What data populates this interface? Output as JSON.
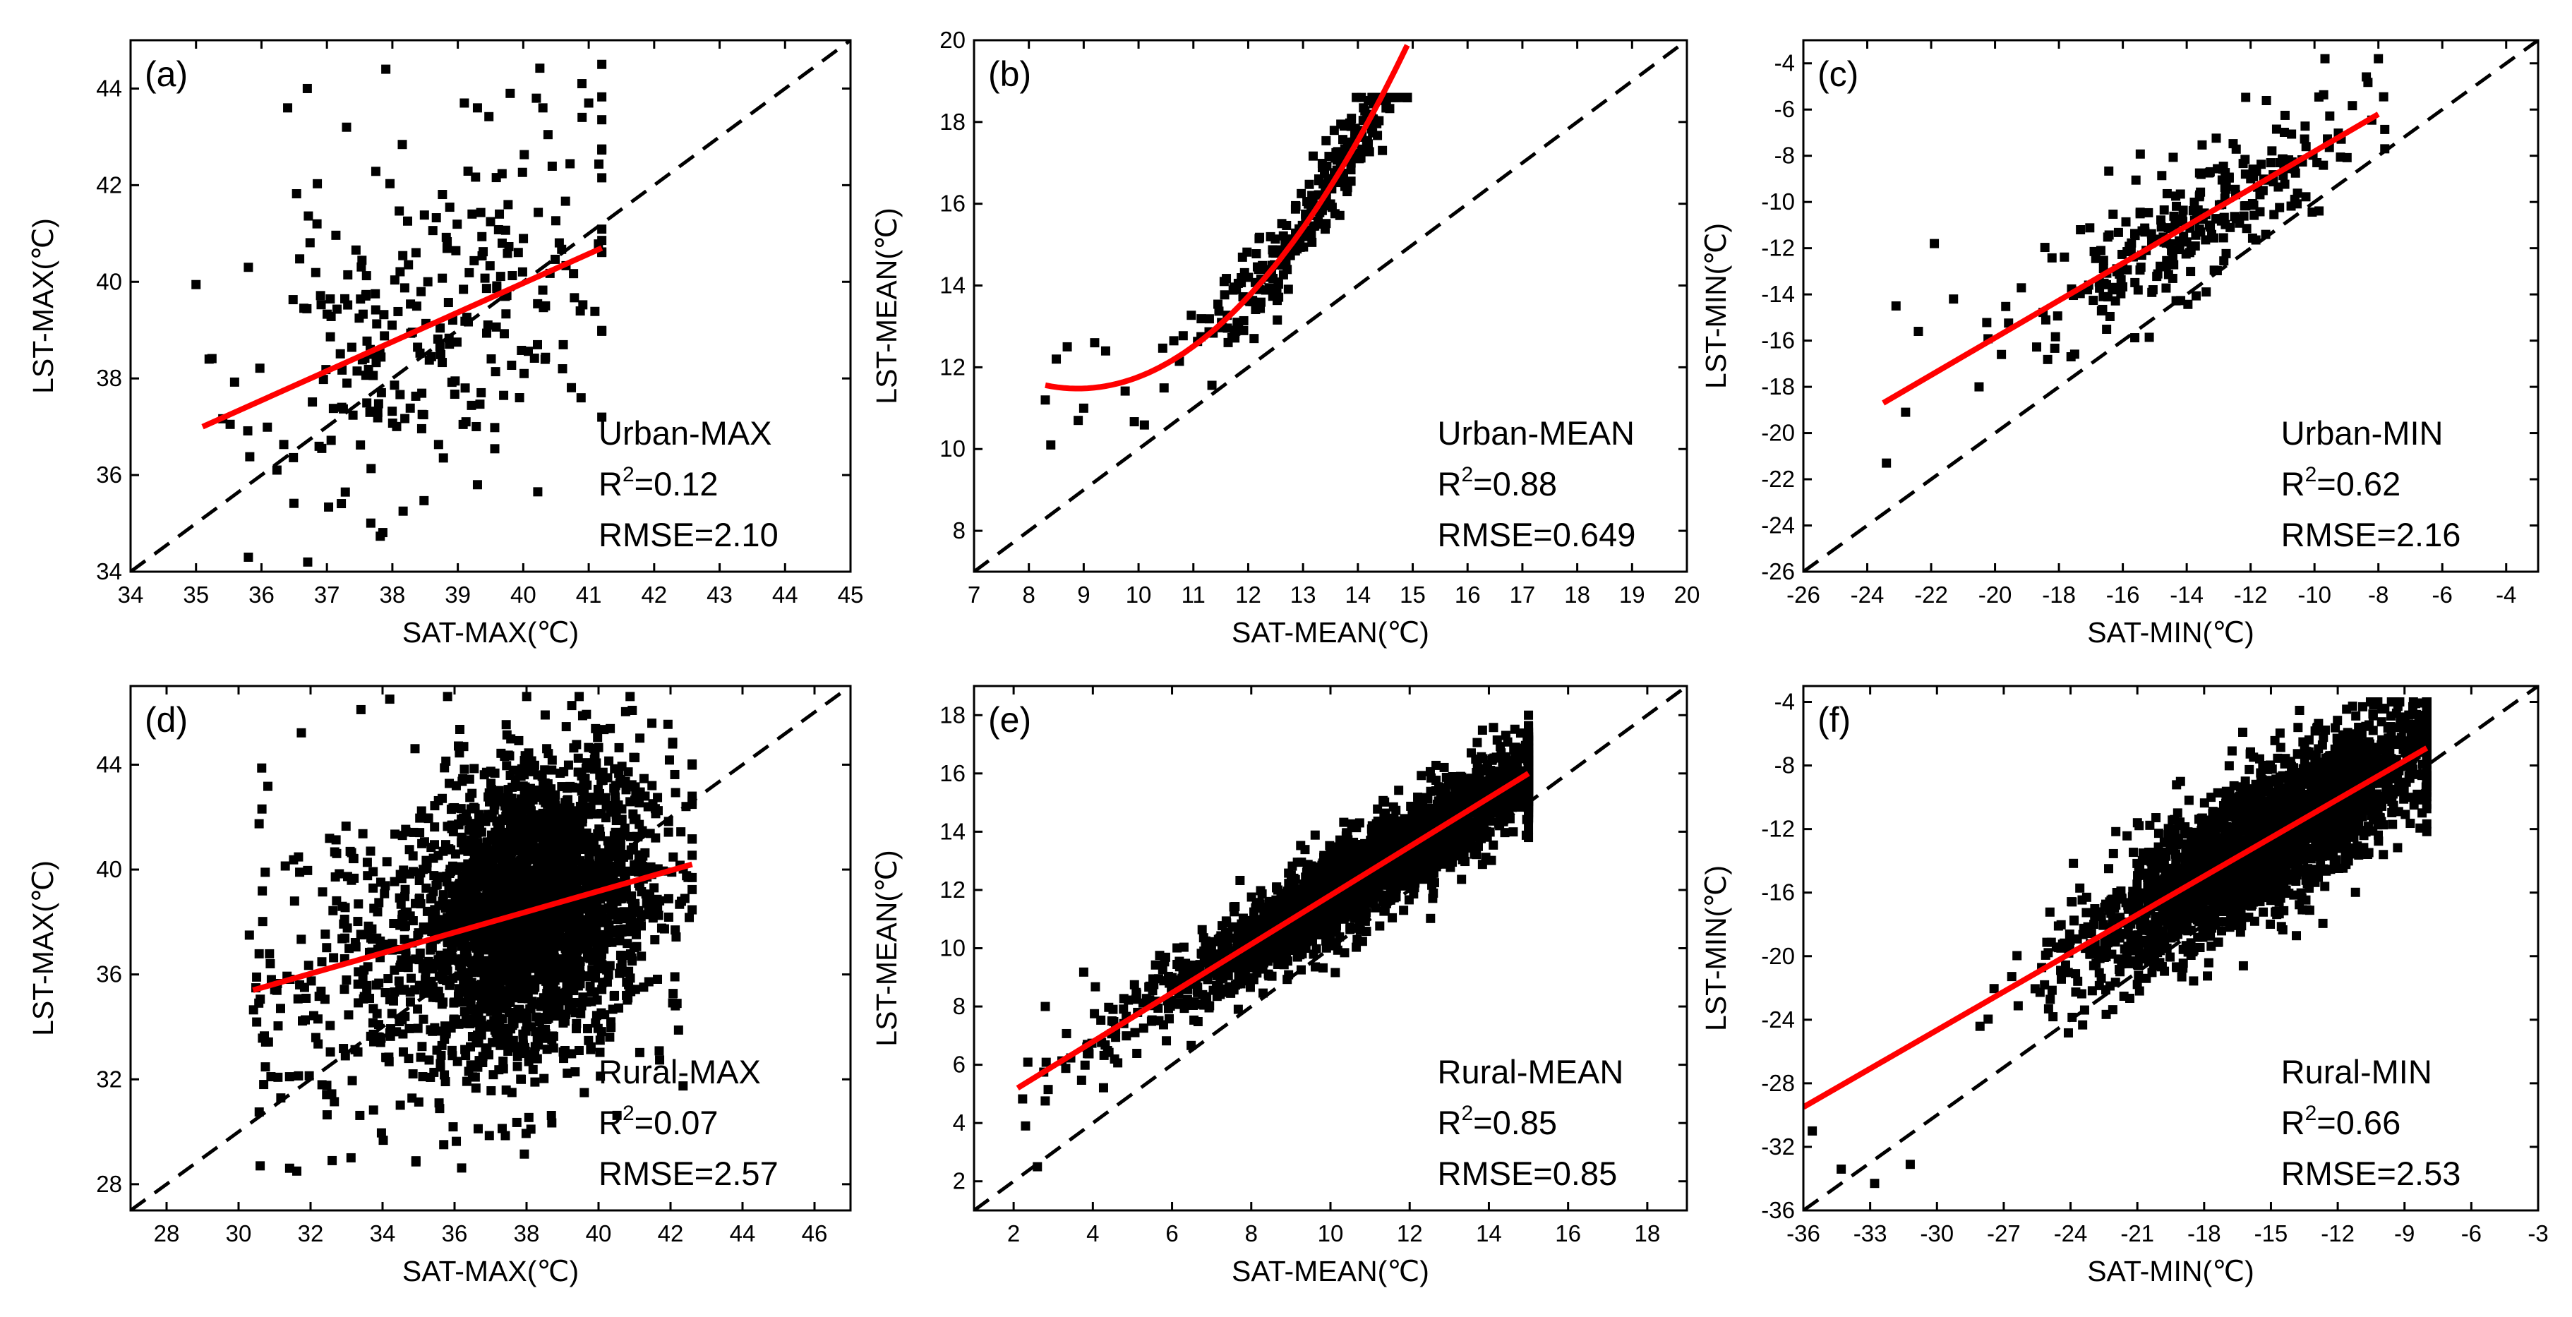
{
  "figure": {
    "description_labels": [
      "(a)",
      "(b)",
      "(c)",
      "(d)",
      "(e)",
      "(f)"
    ]
  },
  "colors": {
    "points": "#000000",
    "fit_line": "#ff0000",
    "identity_line": "#000000",
    "background": "#ffffff"
  },
  "chart_data": [
    {
      "type": "scatter",
      "panel_label": "(a)",
      "title": "Urban-MAX",
      "xlabel": "SAT-MAX(℃)",
      "ylabel": "LST-MAX(℃)",
      "xlim": [
        34,
        45
      ],
      "ylim": [
        34,
        45
      ],
      "xticks": [
        34,
        35,
        36,
        37,
        38,
        39,
        40,
        41,
        42,
        43,
        44,
        45
      ],
      "yticks": [
        34,
        36,
        38,
        40,
        42,
        44
      ],
      "fit": {
        "kind": "linear",
        "x": [
          35.1,
          41.2
        ],
        "y": [
          37.0,
          40.7
        ]
      },
      "identity_line": true,
      "stats": {
        "r2": "=0.12",
        "rmse": "RMSE=2.10"
      },
      "point_cloud": {
        "n": 260,
        "x_center": 38.6,
        "x_spread": 1.35,
        "y_spread": 1.75,
        "x_min": 35.0,
        "x_max": 41.2,
        "y_min": 34.2,
        "y_max": 44.5,
        "seed": 11
      },
      "points": [
        [
          35.8,
          40.3
        ],
        [
          36.4,
          43.6
        ],
        [
          36.7,
          44.0
        ],
        [
          37.3,
          43.2
        ],
        [
          37.9,
          44.4
        ],
        [
          39.1,
          43.7
        ],
        [
          39.3,
          43.6
        ],
        [
          39.8,
          43.9
        ],
        [
          40.2,
          43.8
        ],
        [
          40.3,
          43.6
        ],
        [
          41.0,
          43.7
        ],
        [
          35.2,
          38.4
        ],
        [
          35.8,
          34.3
        ],
        [
          39.3,
          35.8
        ],
        [
          40.6,
          38.2
        ]
      ]
    },
    {
      "type": "scatter",
      "panel_label": "(b)",
      "title": "Urban-MEAN",
      "xlabel": "SAT-MEAN(℃)",
      "ylabel": "LST-MEAN(℃)",
      "xlim": [
        7,
        20
      ],
      "ylim": [
        7,
        20
      ],
      "xticks": [
        7,
        8,
        9,
        10,
        11,
        12,
        13,
        14,
        15,
        16,
        17,
        18,
        19,
        20
      ],
      "yticks": [
        8,
        10,
        12,
        14,
        16,
        18,
        20
      ],
      "fit": {
        "kind": "poly2",
        "coef": [
          0.2327,
          -4.1385,
          29.8795
        ],
        "x_range": [
          8.3,
          14.9
        ]
      },
      "identity_line": true,
      "stats": {
        "r2": "=0.88",
        "rmse": "RMSE=0.649"
      },
      "point_cloud": {
        "n": 300,
        "x_center": 13.2,
        "x_spread": 1.2,
        "y_spread": 0.55,
        "x_min": 8.3,
        "x_max": 14.9,
        "y_min": 10.0,
        "y_max": 18.6,
        "seed": 23,
        "follow_fit": true
      },
      "points": [
        [
          8.4,
          10.1
        ],
        [
          8.5,
          12.2
        ],
        [
          8.7,
          12.5
        ],
        [
          9.0,
          11.0
        ],
        [
          9.2,
          12.6
        ],
        [
          9.4,
          12.4
        ],
        [
          8.9,
          10.7
        ],
        [
          8.3,
          11.2
        ]
      ]
    },
    {
      "type": "scatter",
      "panel_label": "(c)",
      "title": "Urban-MIN",
      "xlabel": "SAT-MIN(℃)",
      "ylabel": "LST-MIN(℃)",
      "xlim": [
        -26,
        -3
      ],
      "ylim": [
        -26,
        -3
      ],
      "xticks": [
        -26,
        -24,
        -22,
        -20,
        -18,
        -16,
        -14,
        -12,
        -10,
        -8,
        -6,
        -4
      ],
      "yticks": [
        -26,
        -24,
        -22,
        -20,
        -18,
        -16,
        -14,
        -12,
        -10,
        -8,
        -6,
        -4
      ],
      "fit": {
        "kind": "linear",
        "x": [
          -23.5,
          -8.0
        ],
        "y": [
          -18.7,
          -6.2
        ]
      },
      "identity_line": true,
      "stats": {
        "r2": "=0.62",
        "rmse": "RMSE=2.16"
      },
      "point_cloud": {
        "n": 280,
        "x_center": -13.5,
        "x_spread": 2.5,
        "y_spread": 1.4,
        "x_min": -23.6,
        "x_max": -7.8,
        "y_min": -21.6,
        "y_max": -3.8,
        "seed": 37,
        "follow_fit": true
      },
      "points": [
        [
          -23.4,
          -21.3
        ],
        [
          -23.1,
          -14.5
        ],
        [
          -22.4,
          -15.6
        ],
        [
          -21.9,
          -11.8
        ],
        [
          -21.3,
          -14.2
        ],
        [
          -20.5,
          -18.0
        ],
        [
          -19.8,
          -16.6
        ],
        [
          -8.0,
          -3.8
        ],
        [
          -22.8,
          -19.1
        ]
      ]
    },
    {
      "type": "scatter",
      "panel_label": "(d)",
      "title": "Rural-MAX",
      "xlabel": "SAT-MAX(℃)",
      "ylabel": "LST-MAX(℃)",
      "xlim": [
        27,
        47
      ],
      "ylim": [
        27,
        47
      ],
      "xticks": [
        28,
        30,
        32,
        34,
        36,
        38,
        40,
        42,
        44,
        46
      ],
      "yticks": [
        28,
        32,
        36,
        40,
        44
      ],
      "fit": {
        "kind": "linear",
        "x": [
          30.4,
          42.6
        ],
        "y": [
          35.4,
          40.2
        ]
      },
      "identity_line": true,
      "stats": {
        "r2": "=0.07",
        "rmse": "RMSE=2.57"
      },
      "point_cloud": {
        "n": 2600,
        "x_center": 38.2,
        "x_spread": 1.7,
        "y_spread": 2.7,
        "x_min": 30.4,
        "x_max": 42.6,
        "y_min": 28.5,
        "y_max": 46.6,
        "seed": 53,
        "tail": 260
      },
      "points": [
        [
          30.6,
          28.7
        ],
        [
          32.6,
          28.9
        ],
        [
          33.4,
          46.1
        ],
        [
          34.2,
          46.5
        ],
        [
          30.3,
          37.5
        ],
        [
          30.9,
          32.1
        ]
      ]
    },
    {
      "type": "scatter",
      "panel_label": "(e)",
      "title": "Rural-MEAN",
      "xlabel": "SAT-MEAN(℃)",
      "ylabel": "LST-MEAN(℃)",
      "xlim": [
        1,
        19
      ],
      "ylim": [
        1,
        19
      ],
      "xticks": [
        2,
        4,
        6,
        8,
        10,
        12,
        14,
        16,
        18
      ],
      "yticks": [
        2,
        4,
        6,
        8,
        10,
        12,
        14,
        16,
        18
      ],
      "fit": {
        "kind": "linear",
        "x": [
          2.1,
          15.0
        ],
        "y": [
          5.2,
          16.0
        ]
      },
      "identity_line": true,
      "stats": {
        "r2": "=0.85",
        "rmse": "RMSE=0.85"
      },
      "point_cloud": {
        "n": 2600,
        "x_center": 11.5,
        "x_spread": 2.9,
        "y_spread": 0.75,
        "x_min": 2.1,
        "x_max": 15.0,
        "y_min": 2.4,
        "y_max": 18.0,
        "seed": 71,
        "follow_fit": true
      },
      "points": [
        [
          2.6,
          2.5
        ],
        [
          2.3,
          3.9
        ],
        [
          2.8,
          8.0
        ],
        [
          15.0,
          18.0
        ]
      ]
    },
    {
      "type": "scatter",
      "panel_label": "(f)",
      "title": "Rural-MIN",
      "xlabel": "SAT-MIN(℃)",
      "ylabel": "LST-MIN(℃)",
      "xlim": [
        -36,
        -3
      ],
      "ylim": [
        -36,
        -3
      ],
      "xticks": [
        -36,
        -33,
        -30,
        -27,
        -24,
        -21,
        -18,
        -15,
        -12,
        -9,
        -6,
        -3
      ],
      "yticks": [
        -36,
        -32,
        -28,
        -24,
        -20,
        -16,
        -12,
        -8,
        -4
      ],
      "fit": {
        "kind": "linear",
        "x": [
          -36.0,
          -8.0
        ],
        "y": [
          -29.5,
          -6.9
        ]
      },
      "identity_line": true,
      "stats": {
        "r2": "=0.66",
        "rmse": "RMSE=2.53"
      },
      "point_cloud": {
        "n": 2700,
        "x_center": -15.0,
        "x_spread": 4.0,
        "y_spread": 2.2,
        "x_min": -35.5,
        "x_max": -8.0,
        "y_min": -35.0,
        "y_max": -4.0,
        "seed": 97,
        "follow_fit": true
      },
      "points": [
        [
          -35.6,
          -31.0
        ],
        [
          -34.3,
          -33.4
        ],
        [
          -32.8,
          -34.3
        ],
        [
          -31.2,
          -33.1
        ],
        [
          -8.6,
          -4.0
        ],
        [
          -8.4,
          -5.8
        ]
      ]
    }
  ]
}
